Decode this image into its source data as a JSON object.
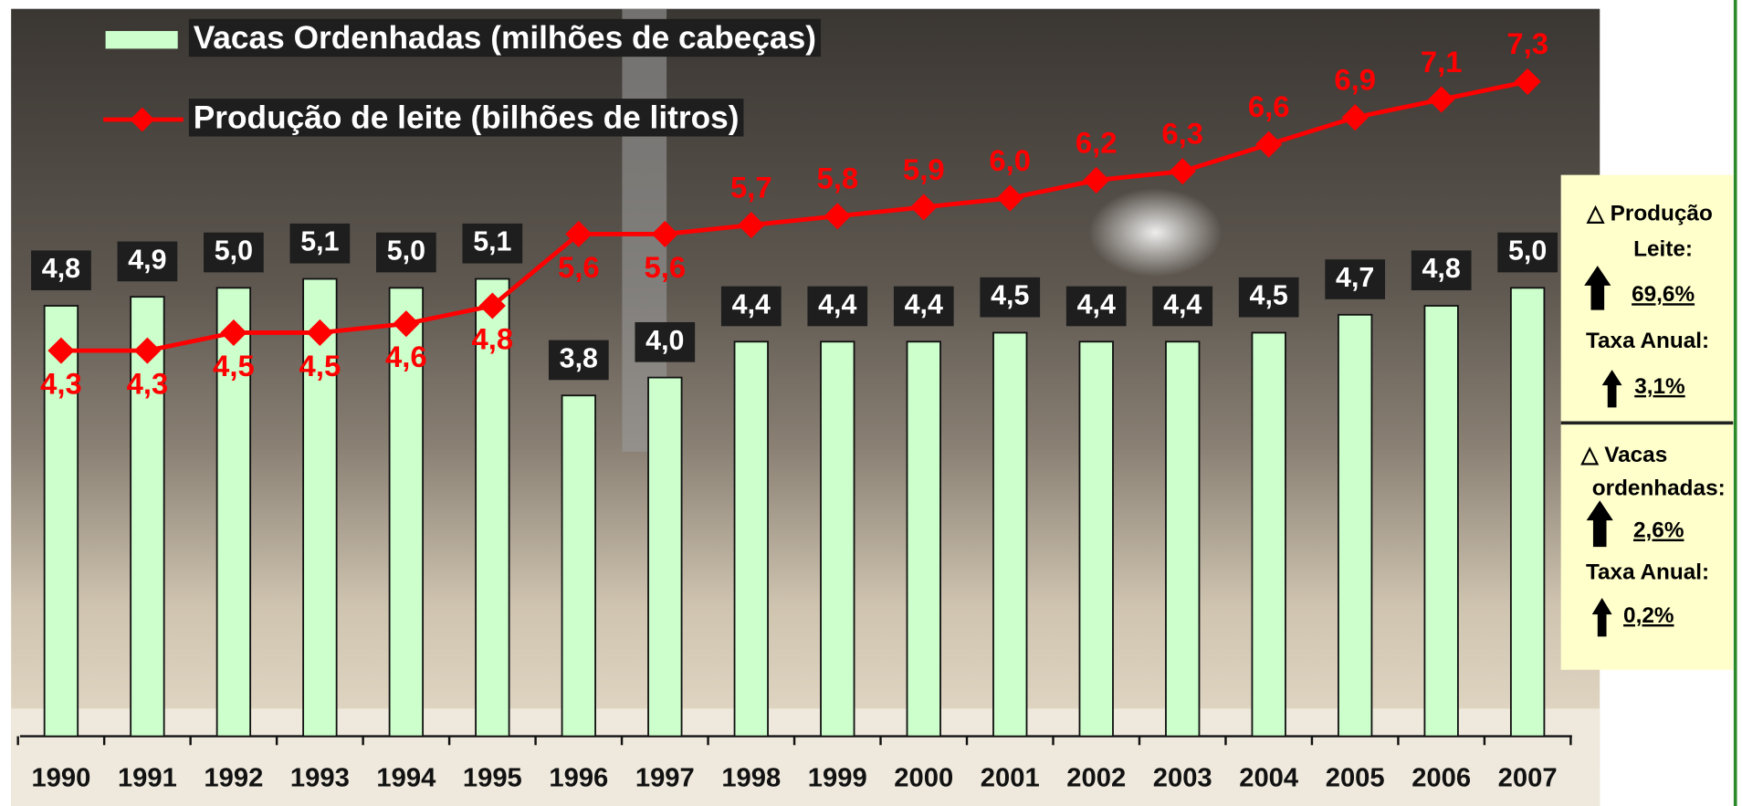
{
  "chart_data": {
    "type": "bar",
    "categories": [
      "1990",
      "1991",
      "1992",
      "1993",
      "1994",
      "1995",
      "1996",
      "1997",
      "1998",
      "1999",
      "2000",
      "2001",
      "2002",
      "2003",
      "2004",
      "2005",
      "2006",
      "2007"
    ],
    "series": [
      {
        "name": "Vacas Ordenhadas (milhões de cabeças)",
        "type": "bar",
        "color": "#ccffcc",
        "values": [
          4.8,
          4.9,
          5.0,
          5.1,
          5.0,
          5.1,
          3.8,
          4.0,
          4.4,
          4.4,
          4.4,
          4.5,
          4.4,
          4.4,
          4.5,
          4.7,
          4.8,
          5.0
        ],
        "value_labels": [
          "4,8",
          "4,9",
          "5,0",
          "5,1",
          "5,0",
          "5,1",
          "3,8",
          "4,0",
          "4,4",
          "4,4",
          "4,4",
          "4,5",
          "4,4",
          "4,4",
          "4,5",
          "4,7",
          "4,8",
          "5,0"
        ]
      },
      {
        "name": "Produção de leite (bilhões de litros)",
        "type": "line",
        "color": "#ff0000",
        "values": [
          4.3,
          4.3,
          4.5,
          4.5,
          4.6,
          4.8,
          5.6,
          5.6,
          5.7,
          5.8,
          5.9,
          6.0,
          6.2,
          6.3,
          6.6,
          6.9,
          7.1,
          7.3
        ],
        "value_labels": [
          "4,3",
          "4,3",
          "4,5",
          "4,5",
          "4,6",
          "4,8",
          "5,6",
          "5,6",
          "5,7",
          "5,8",
          "5,9",
          "6,0",
          "6,2",
          "6,3",
          "6,6",
          "6,9",
          "7,1",
          "7,3"
        ]
      }
    ],
    "ylim": [
      0,
      8
    ],
    "legend": "top-left"
  },
  "side_panel": {
    "production": {
      "title": [
        "△ Produção",
        "Leite:"
      ],
      "change": "69,6%",
      "rate_label": "Taxa Anual:",
      "rate": "3,1%"
    },
    "cows": {
      "title": [
        "△  Vacas",
        "ordenhadas:"
      ],
      "change": "2,6%",
      "rate_label": "Taxa Anual:",
      "rate": "0,2%"
    }
  }
}
